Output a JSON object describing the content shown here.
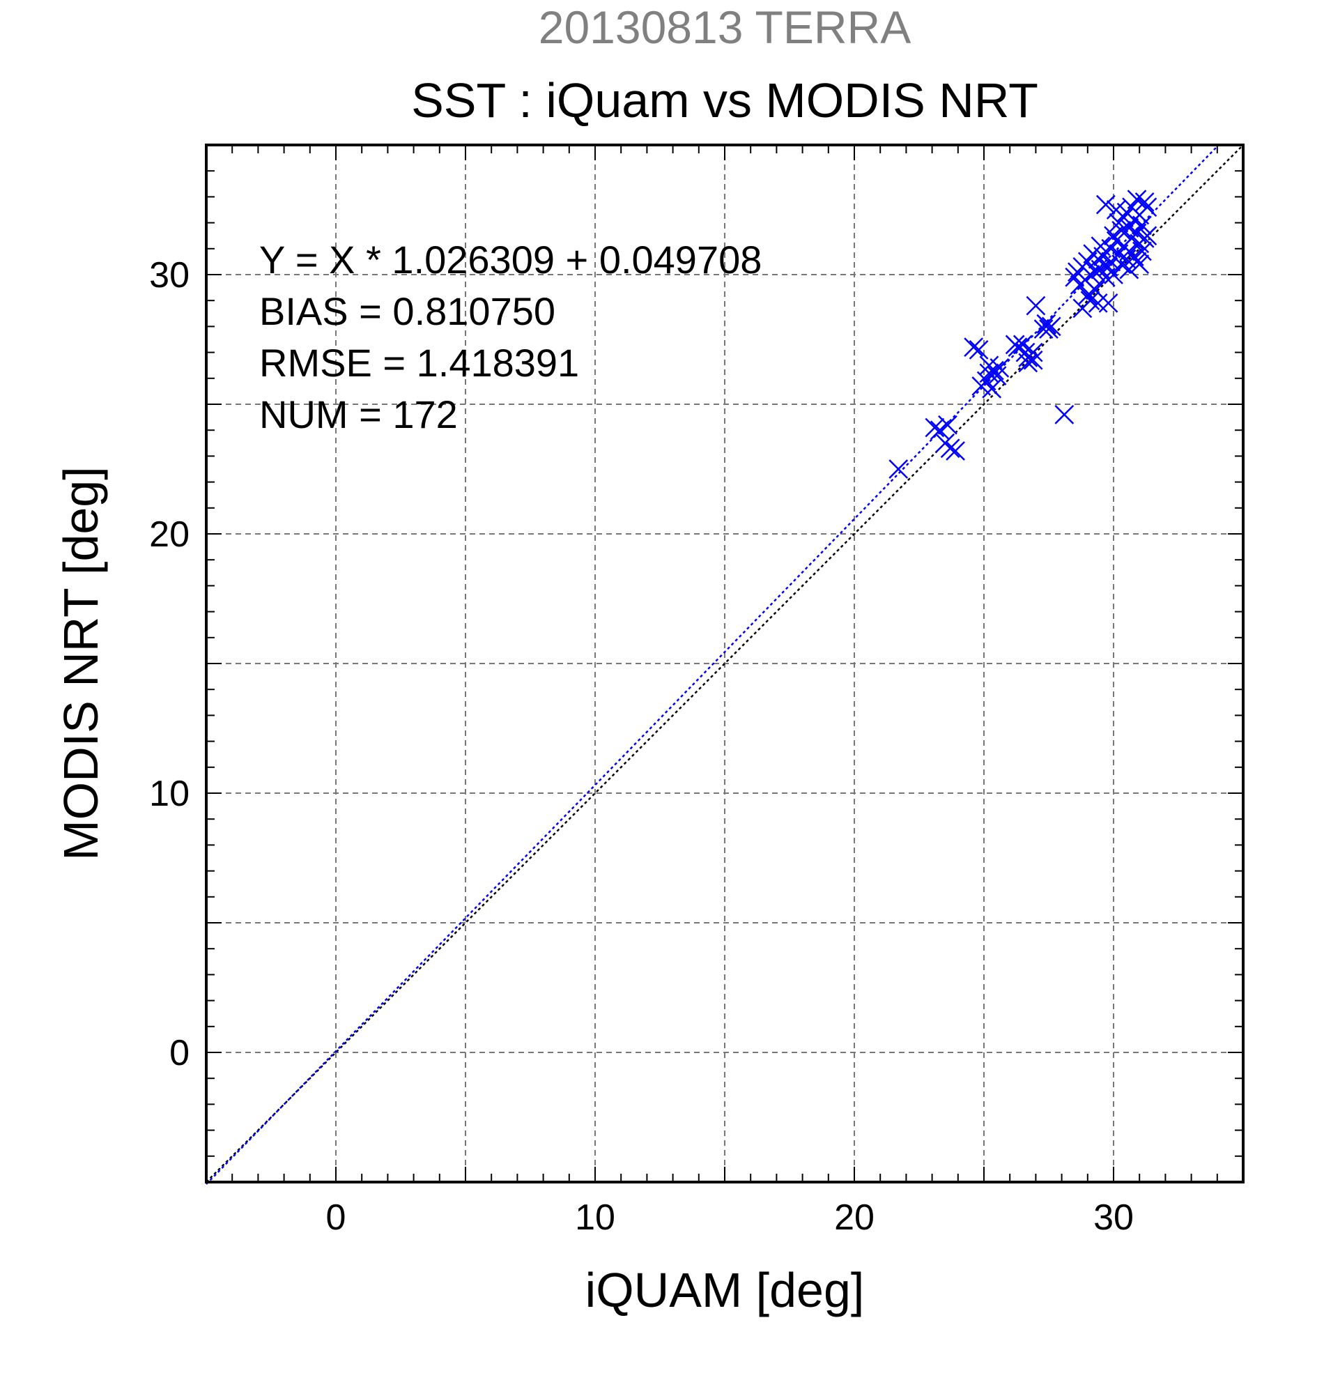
{
  "header": {
    "date_title": "20130813 TERRA",
    "main_title": "SST : iQuam vs MODIS NRT"
  },
  "stats": {
    "regression": "Y = X * 1.026309 + 0.049708",
    "bias": "BIAS = 0.810750",
    "rmse": "RMSE = 1.418391",
    "num": "NUM = 172"
  },
  "colors": {
    "series": "#0000ff",
    "one_to_one": "#000000",
    "grid": "#777777",
    "date_title": "#808080",
    "text": "#000000"
  },
  "chart_data": {
    "type": "scatter",
    "title": "SST : iQuam vs MODIS NRT",
    "subtitle": "20130813 TERRA",
    "xlabel": "iQUAM [deg]",
    "ylabel": "MODIS NRT [deg]",
    "xlim": [
      -5,
      35
    ],
    "ylim": [
      -5,
      35
    ],
    "xticks": [
      0,
      10,
      20,
      30
    ],
    "yticks": [
      0,
      10,
      20,
      30
    ],
    "grid": true,
    "grid_step": 5,
    "minor_tick_step": 1,
    "marker": "x",
    "fit": {
      "slope": 1.026309,
      "intercept": 0.049708
    },
    "reference_line": "y = x",
    "series": [
      {
        "points": [
          [
            21.7,
            22.5
          ],
          [
            23.1,
            24.1
          ],
          [
            23.3,
            24.0
          ],
          [
            23.6,
            24.2
          ],
          [
            23.5,
            23.5
          ],
          [
            23.7,
            23.3
          ],
          [
            23.9,
            23.2
          ],
          [
            24.6,
            27.2
          ],
          [
            24.8,
            27.1
          ],
          [
            24.9,
            25.7
          ],
          [
            25.1,
            25.9
          ],
          [
            25.2,
            26.2
          ],
          [
            25.2,
            26.5
          ],
          [
            25.3,
            25.6
          ],
          [
            25.4,
            26.3
          ],
          [
            25.5,
            26.1
          ],
          [
            25.6,
            26.4
          ],
          [
            26.2,
            27.3
          ],
          [
            26.3,
            27.2
          ],
          [
            26.5,
            27.3
          ],
          [
            26.6,
            27.0
          ],
          [
            26.7,
            26.6
          ],
          [
            26.7,
            26.8
          ],
          [
            26.9,
            26.7
          ],
          [
            26.9,
            27.0
          ],
          [
            27.0,
            28.8
          ],
          [
            27.3,
            27.9
          ],
          [
            27.4,
            28.1
          ],
          [
            27.5,
            27.9
          ],
          [
            27.6,
            28.0
          ],
          [
            28.1,
            24.6
          ],
          [
            28.5,
            29.9
          ],
          [
            28.6,
            30.1
          ],
          [
            28.7,
            29.6
          ],
          [
            28.8,
            30.3
          ],
          [
            28.8,
            28.7
          ],
          [
            28.9,
            29.8
          ],
          [
            29.0,
            30.5
          ],
          [
            29.0,
            29.2
          ],
          [
            29.1,
            30.0
          ],
          [
            29.1,
            29.0
          ],
          [
            29.2,
            30.8
          ],
          [
            29.3,
            30.1
          ],
          [
            29.3,
            29.4
          ],
          [
            29.4,
            30.6
          ],
          [
            29.4,
            28.9
          ],
          [
            29.5,
            31.1
          ],
          [
            29.5,
            30.2
          ],
          [
            29.6,
            30.7
          ],
          [
            29.7,
            29.9
          ],
          [
            29.8,
            30.3
          ],
          [
            29.8,
            28.9
          ],
          [
            29.9,
            31.0
          ],
          [
            29.9,
            30.5
          ],
          [
            30.0,
            31.5
          ],
          [
            30.0,
            30.0
          ],
          [
            30.1,
            32.5
          ],
          [
            30.1,
            31.3
          ],
          [
            30.2,
            32.0
          ],
          [
            30.2,
            30.8
          ],
          [
            30.3,
            31.7
          ],
          [
            30.3,
            30.4
          ],
          [
            30.4,
            32.2
          ],
          [
            30.4,
            31.1
          ],
          [
            30.5,
            30.6
          ],
          [
            30.5,
            32.4
          ],
          [
            30.6,
            31.8
          ],
          [
            30.6,
            30.9
          ],
          [
            30.7,
            32.6
          ],
          [
            30.7,
            31.4
          ],
          [
            30.8,
            32.1
          ],
          [
            30.8,
            30.7
          ],
          [
            30.9,
            31.6
          ],
          [
            30.9,
            30.5
          ],
          [
            31.0,
            32.3
          ],
          [
            31.0,
            31.2
          ],
          [
            31.1,
            31.9
          ],
          [
            31.1,
            30.9
          ],
          [
            31.2,
            32.8
          ],
          [
            31.2,
            31.4
          ],
          [
            31.3,
            31.5
          ],
          [
            31.3,
            32.6
          ],
          [
            29.7,
            32.7
          ],
          [
            30.6,
            30.2
          ],
          [
            30.9,
            32.9
          ],
          [
            31.0,
            30.4
          ]
        ]
      }
    ]
  }
}
